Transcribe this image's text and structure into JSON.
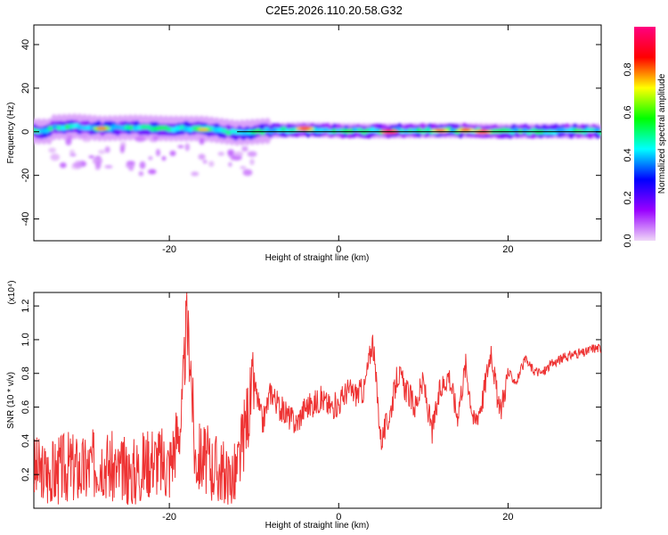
{
  "title": "C2E5.2026.110.20.58.G32",
  "chart_data": [
    {
      "type": "heatmap",
      "xlabel": "Height of straight line (km)",
      "ylabel": "Frequency (Hz)",
      "xlim": [
        -36,
        31
      ],
      "ylim": [
        -50,
        49
      ],
      "x_ticks": [
        -20,
        0,
        20
      ],
      "y_ticks": [
        -40,
        -20,
        0,
        20,
        40
      ],
      "colorbar": {
        "label": "Normalized spectral amplitude",
        "range": [
          0,
          1
        ],
        "ticks": [
          0.0,
          0.2,
          0.4,
          0.6,
          0.8
        ],
        "colors": [
          "#f0d8f8",
          "#9900ff",
          "#0000ff",
          "#00ffff",
          "#00ff00",
          "#ffff00",
          "#ff0000",
          "#ff0080"
        ]
      },
      "reference_line_hz": 0,
      "ridge_points": [
        {
          "x": -34,
          "y": 2.0
        },
        {
          "x": -31,
          "y": 2.5
        },
        {
          "x": -28,
          "y": 1.5
        },
        {
          "x": -24,
          "y": 2.0
        },
        {
          "x": -20,
          "y": 1.5
        },
        {
          "x": -16,
          "y": 1.5
        },
        {
          "x": -12,
          "y": -0.5
        },
        {
          "x": -8,
          "y": 0.5
        },
        {
          "x": -4,
          "y": 1.0
        },
        {
          "x": 0,
          "y": 0.5
        },
        {
          "x": 5,
          "y": 0.3
        },
        {
          "x": 10,
          "y": 0.5
        },
        {
          "x": 15,
          "y": 0.5
        },
        {
          "x": 20,
          "y": 0.2
        },
        {
          "x": 25,
          "y": 0.3
        },
        {
          "x": 31,
          "y": 0.2
        }
      ],
      "hot_spots": [
        {
          "x": -4,
          "y": 1.5,
          "amplitude": 0.9
        },
        {
          "x": 6,
          "y": 0.0,
          "amplitude": 0.95
        },
        {
          "x": 12,
          "y": 0.5,
          "amplitude": 0.85
        },
        {
          "x": 15,
          "y": 0.8,
          "amplitude": 0.85
        },
        {
          "x": 17,
          "y": 0.0,
          "amplitude": 0.9
        },
        {
          "x": -28,
          "y": 1.5,
          "amplitude": 0.8
        },
        {
          "x": -16,
          "y": 1.0,
          "amplitude": 0.75
        }
      ]
    },
    {
      "type": "line",
      "xlabel": "Height of straight line (km)",
      "ylabel": "SNR (10 * v/v)",
      "y_multiplier": "(x10⁴)",
      "xlim": [
        -36,
        31
      ],
      "ylim": [
        0,
        1.28
      ],
      "x_ticks": [
        -20,
        0,
        20
      ],
      "y_ticks": [
        0.2,
        0.4,
        0.6,
        0.8,
        1.0,
        1.2
      ],
      "series": [
        {
          "color": "#ee3333",
          "x": [
            -36,
            -34,
            -32,
            -30,
            -28,
            -26,
            -24,
            -22,
            -20,
            -18.5,
            -18,
            -17.5,
            -17,
            -16,
            -15,
            -14,
            -13,
            -12,
            -11,
            -10,
            -9,
            -8,
            -7,
            -6,
            -5,
            -4,
            -3,
            -2,
            -1,
            0,
            1,
            2,
            3,
            4,
            5,
            6,
            7,
            8,
            9,
            10,
            11,
            12,
            13,
            14,
            15,
            16,
            17,
            18,
            19,
            20,
            21,
            22,
            23,
            24,
            25,
            26,
            27,
            28,
            29,
            30,
            31
          ],
          "y": [
            0.22,
            0.2,
            0.25,
            0.22,
            0.3,
            0.2,
            0.22,
            0.3,
            0.25,
            0.55,
            1.1,
            0.9,
            0.3,
            0.3,
            0.25,
            0.22,
            0.15,
            0.2,
            0.5,
            0.75,
            0.5,
            0.7,
            0.6,
            0.55,
            0.5,
            0.6,
            0.62,
            0.65,
            0.6,
            0.62,
            0.7,
            0.68,
            0.7,
            1.0,
            0.4,
            0.55,
            0.8,
            0.7,
            0.6,
            0.75,
            0.45,
            0.7,
            0.8,
            0.55,
            0.85,
            0.5,
            0.65,
            0.95,
            0.55,
            0.8,
            0.75,
            0.88,
            0.82,
            0.8,
            0.85,
            0.88,
            0.9,
            0.92,
            0.92,
            0.95,
            0.95
          ]
        }
      ]
    }
  ]
}
